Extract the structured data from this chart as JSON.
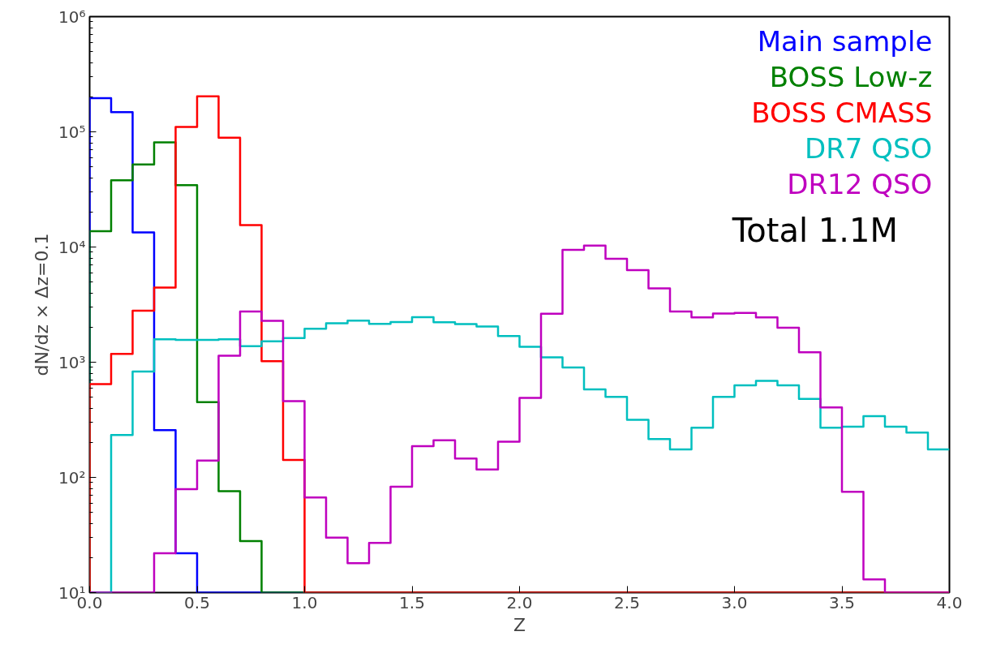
{
  "chart_data": {
    "type": "histogram",
    "xlabel": "Z",
    "ylabel": "dN/dz × Δz=0.1",
    "bins": [
      0.0,
      0.1,
      0.2,
      0.3,
      0.4,
      0.5,
      0.6,
      0.7,
      0.8,
      0.9,
      1.0,
      1.1,
      1.2,
      1.3,
      1.4,
      1.5,
      1.6,
      1.7,
      1.8,
      1.9,
      2.0,
      2.1,
      2.2,
      2.3,
      2.4,
      2.5,
      2.6,
      2.7,
      2.8,
      2.9,
      3.0,
      3.1,
      3.2,
      3.3,
      3.4,
      3.5,
      3.6,
      3.7,
      3.8,
      3.9,
      4.0
    ],
    "series": [
      {
        "name": "Main sample",
        "color": "#0000ff",
        "values": [
          196000,
          148000,
          13400,
          257,
          22,
          null,
          null,
          null,
          null,
          null,
          null,
          null,
          null,
          null,
          null,
          null,
          null,
          null,
          null,
          null,
          null,
          null,
          null,
          null,
          null,
          null,
          null,
          null,
          null,
          null,
          null,
          null,
          null,
          null,
          null,
          null,
          null,
          null,
          null,
          null
        ]
      },
      {
        "name": "BOSS Low-z",
        "color": "#008000",
        "values": [
          13700,
          38000,
          52000,
          81000,
          34500,
          450,
          76,
          28,
          null,
          null,
          null,
          null,
          null,
          null,
          null,
          null,
          null,
          null,
          null,
          null,
          null,
          null,
          null,
          null,
          null,
          null,
          null,
          null,
          null,
          null,
          null,
          null,
          null,
          null,
          null,
          null,
          null,
          null,
          null,
          null
        ]
      },
      {
        "name": "BOSS CMASS",
        "color": "#ff0000",
        "values": [
          645,
          1180,
          2800,
          4450,
          110000,
          203000,
          89000,
          15500,
          1020,
          142,
          null,
          null,
          null,
          null,
          null,
          null,
          null,
          null,
          null,
          null,
          null,
          null,
          null,
          null,
          null,
          null,
          null,
          null,
          null,
          null,
          null,
          null,
          null,
          null,
          null,
          null,
          null,
          null,
          null,
          null
        ]
      },
      {
        "name": "DR7 QSO",
        "color": "#00bfbf",
        "values": [
          null,
          233,
          830,
          1580,
          1560,
          1560,
          1580,
          1380,
          1520,
          1620,
          1950,
          2180,
          2300,
          2150,
          2230,
          2460,
          2220,
          2140,
          2040,
          1690,
          1360,
          1100,
          900,
          580,
          500,
          316,
          215,
          175,
          270,
          500,
          630,
          690,
          630,
          480,
          270,
          275,
          340,
          275,
          245,
          175
        ]
      },
      {
        "name": "DR12 QSO",
        "color": "#bf00bf",
        "values": [
          null,
          null,
          null,
          22,
          79,
          140,
          1140,
          2750,
          2290,
          460,
          67,
          30,
          18,
          27,
          83,
          187,
          210,
          146,
          117,
          204,
          490,
          2630,
          9460,
          10300,
          7900,
          6300,
          4380,
          2750,
          2450,
          2650,
          2680,
          2450,
          1990,
          1220,
          405,
          75,
          13,
          null,
          null,
          null
        ]
      }
    ],
    "annotations": [
      "Total 1.1M"
    ],
    "xlim": [
      0,
      4
    ],
    "ylim": [
      10,
      1000000
    ],
    "xticks": [
      {
        "value": 0,
        "label": "0.0"
      },
      0.5,
      {
        "value": 1,
        "label": "1.0"
      },
      1.5,
      {
        "value": 2,
        "label": "2.0"
      },
      2.5,
      {
        "value": 3,
        "label": "3.0"
      },
      3.5,
      {
        "value": 4,
        "label": "4.0"
      }
    ],
    "yticks": [
      {
        "value": 10,
        "label": "10¹"
      },
      {
        "value": 100,
        "label": "10²"
      },
      {
        "value": 1000,
        "label": "10³"
      },
      {
        "value": 10000,
        "label": "10⁴"
      },
      {
        "value": 100000,
        "label": "10⁵"
      },
      {
        "value": 1000000,
        "label": "10⁶"
      }
    ],
    "log": "y",
    "legend": "top right"
  }
}
